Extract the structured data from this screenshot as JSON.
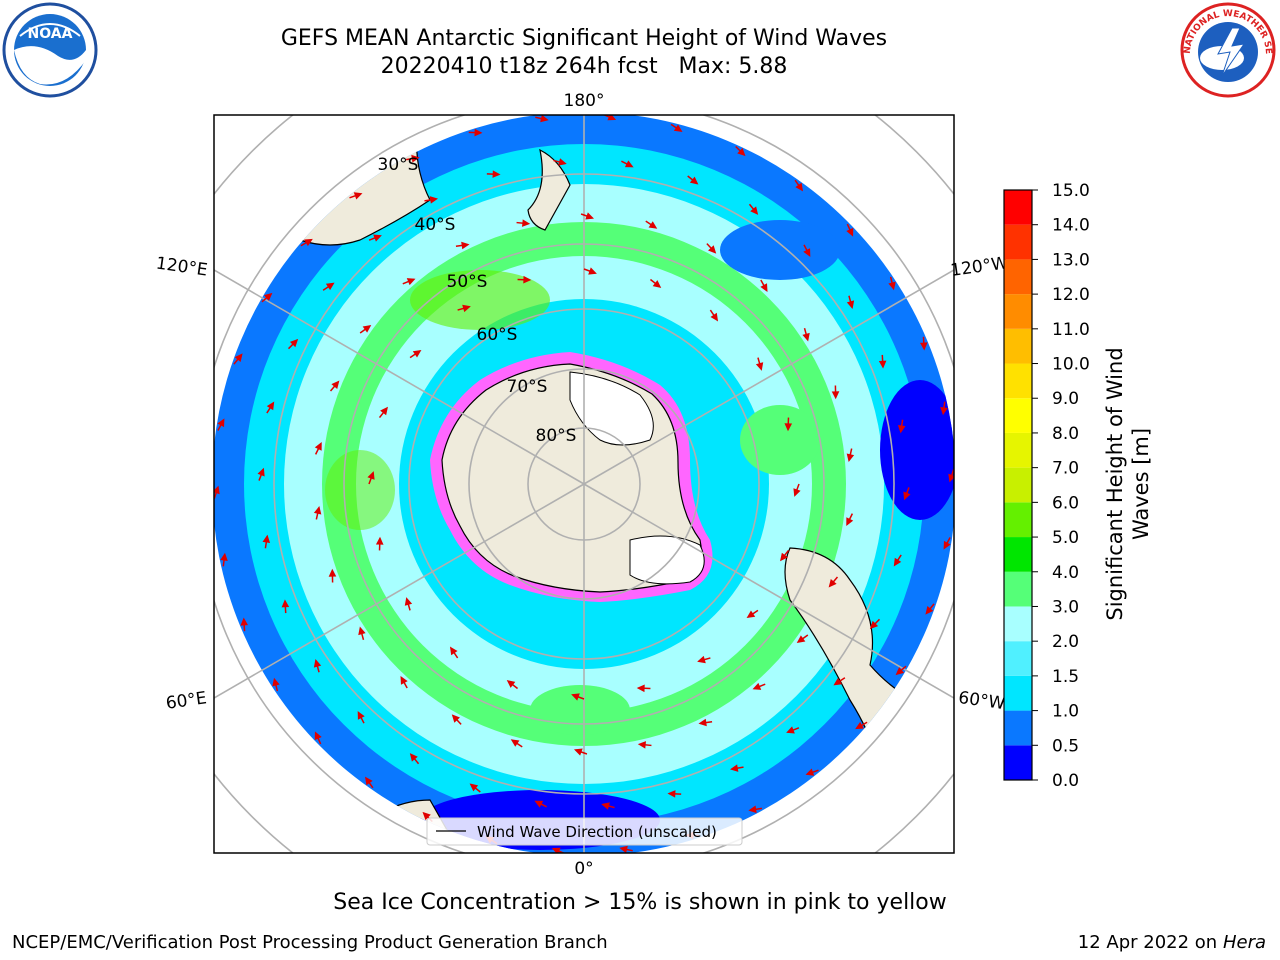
{
  "title_line1": "GEFS MEAN Antarctic Significant Height of Wind Waves",
  "title_line2": "20220410 t18z 264h fcst   Max: 5.88",
  "logos": {
    "left": "NOAA",
    "right": "NATIONAL WEATHER SERVICE"
  },
  "map": {
    "top_lon_label": "180°",
    "bottom_lon_label": "0°",
    "left_upper_label": "120°E",
    "left_lower_label": "60°E",
    "right_upper_label": "120°W",
    "right_lower_label": "60°W",
    "lat_labels": [
      "30°S",
      "40°S",
      "50°S",
      "60°S",
      "70°S",
      "80°S"
    ],
    "legend_label": "Wind Wave Direction (unscaled)"
  },
  "colorbar": {
    "title_line1": "Significant Height of Wind",
    "title_line2": "Waves [m]",
    "ticks": [
      "0.0",
      "0.5",
      "1.0",
      "1.5",
      "2.0",
      "3.0",
      "4.0",
      "5.0",
      "6.0",
      "7.0",
      "8.0",
      "9.0",
      "10.0",
      "11.0",
      "12.0",
      "13.0",
      "14.0",
      "15.0"
    ],
    "colors": [
      "#0000ff",
      "#0a78ff",
      "#00e6ff",
      "#50f0ff",
      "#a8ffff",
      "#55ff78",
      "#00e600",
      "#64f000",
      "#c8f000",
      "#e6f500",
      "#ffff00",
      "#ffe100",
      "#ffbe00",
      "#ff8c00",
      "#ff6400",
      "#ff3200",
      "#ff0000"
    ]
  },
  "note": "Sea Ice Concentration > 15% is shown in pink to yellow",
  "footer_left": "NCEP/EMC/Verification Post Processing Product Generation Branch",
  "footer_right_prefix": "12 Apr 2022 on ",
  "footer_right_host": "Hera"
}
